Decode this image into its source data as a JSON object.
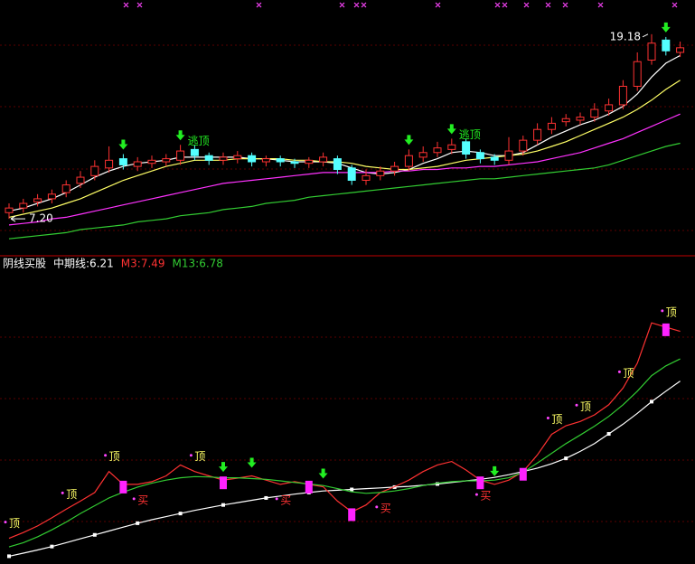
{
  "chart_data": [
    {
      "type": "candlestick",
      "ylim": [
        4.8,
        21.4
      ],
      "open": [
        7.6,
        7.9,
        8.3,
        8.5,
        8.9,
        9.5,
        10.0,
        10.5,
        11.1,
        10.6,
        10.8,
        10.9,
        11.0,
        11.7,
        11.3,
        11.0,
        11.1,
        11.3,
        10.9,
        11.1,
        10.9,
        10.8,
        10.9,
        11.1,
        10.5,
        9.7,
        10.0,
        10.3,
        10.6,
        11.2,
        11.5,
        11.7,
        12.2,
        11.5,
        11.2,
        11.0,
        11.6,
        12.3,
        13.0,
        13.5,
        13.6,
        13.8,
        14.2,
        14.6,
        15.8,
        17.5,
        18.8,
        18.0
      ],
      "high": [
        8.2,
        8.5,
        8.8,
        9.1,
        9.7,
        10.3,
        11.0,
        11.9,
        11.4,
        11.2,
        11.3,
        11.4,
        12.0,
        12.0,
        11.5,
        11.5,
        11.6,
        11.5,
        11.3,
        11.3,
        11.1,
        11.2,
        11.5,
        11.3,
        10.7,
        10.4,
        10.6,
        10.9,
        11.7,
        11.9,
        12.2,
        12.4,
        12.4,
        11.7,
        11.4,
        12.5,
        12.6,
        13.4,
        13.8,
        14.0,
        14.1,
        14.7,
        15.0,
        16.2,
        18.0,
        19.18,
        19.0,
        18.7
      ],
      "low": [
        7.2,
        7.6,
        8.0,
        8.2,
        8.6,
        9.2,
        9.7,
        10.2,
        10.4,
        10.3,
        10.5,
        10.6,
        10.7,
        11.0,
        10.7,
        10.7,
        10.8,
        10.6,
        10.6,
        10.6,
        10.5,
        10.5,
        10.6,
        10.1,
        9.4,
        9.4,
        9.7,
        10.0,
        10.3,
        10.9,
        11.2,
        11.4,
        11.1,
        10.8,
        10.7,
        10.7,
        11.3,
        12.0,
        12.7,
        13.2,
        13.3,
        13.5,
        13.9,
        14.3,
        15.5,
        17.2,
        17.8,
        17.7
      ],
      "close": [
        7.9,
        8.2,
        8.5,
        8.8,
        9.4,
        9.9,
        10.6,
        11.0,
        10.7,
        10.9,
        11.0,
        11.1,
        11.6,
        11.3,
        11.0,
        11.2,
        11.3,
        10.9,
        11.1,
        10.9,
        10.8,
        11.0,
        11.2,
        10.4,
        9.7,
        10.0,
        10.3,
        10.6,
        11.3,
        11.5,
        11.8,
        12.0,
        11.4,
        11.1,
        11.0,
        11.6,
        12.3,
        13.0,
        13.4,
        13.7,
        13.8,
        14.3,
        14.6,
        15.8,
        17.4,
        18.6,
        18.1,
        18.3
      ],
      "up_color": "#ff3232",
      "down_color": "#54ffff",
      "series": [
        {
          "color": "#ffffff",
          "values": [
            7.7,
            7.9,
            8.2,
            8.5,
            8.9,
            9.4,
            9.9,
            10.3,
            10.6,
            10.8,
            10.9,
            11.0,
            11.2,
            11.2,
            11.2,
            11.2,
            11.2,
            11.1,
            11.1,
            11.0,
            10.9,
            10.9,
            10.9,
            10.8,
            10.5,
            10.2,
            10.1,
            10.2,
            10.4,
            10.8,
            11.1,
            11.5,
            11.6,
            11.5,
            11.3,
            11.3,
            11.5,
            12.0,
            12.5,
            12.9,
            13.3,
            13.6,
            14.0,
            14.5,
            15.3,
            16.4,
            17.3,
            17.8
          ]
        },
        {
          "color": "#ffff66",
          "values": [
            7.3,
            7.5,
            7.7,
            7.9,
            8.2,
            8.5,
            8.9,
            9.3,
            9.7,
            10.0,
            10.3,
            10.6,
            10.8,
            11.0,
            11.0,
            11.0,
            11.1,
            11.1,
            11.1,
            11.1,
            11.0,
            11.0,
            10.9,
            10.9,
            10.8,
            10.6,
            10.5,
            10.4,
            10.4,
            10.5,
            10.6,
            10.8,
            11.0,
            11.1,
            11.2,
            11.3,
            11.4,
            11.6,
            11.9,
            12.2,
            12.6,
            13.0,
            13.4,
            13.8,
            14.3,
            14.9,
            15.6,
            16.2
          ]
        },
        {
          "color": "#ff32ff",
          "values": [
            6.8,
            6.9,
            7.0,
            7.2,
            7.3,
            7.5,
            7.7,
            7.9,
            8.1,
            8.3,
            8.5,
            8.7,
            8.9,
            9.1,
            9.3,
            9.5,
            9.6,
            9.7,
            9.8,
            9.9,
            10.0,
            10.1,
            10.2,
            10.2,
            10.2,
            10.2,
            10.2,
            10.3,
            10.3,
            10.4,
            10.4,
            10.5,
            10.5,
            10.6,
            10.6,
            10.7,
            10.8,
            10.9,
            11.1,
            11.3,
            11.5,
            11.8,
            12.1,
            12.4,
            12.8,
            13.2,
            13.6,
            14.0
          ]
        },
        {
          "color": "#32cc32",
          "values": [
            5.9,
            6.0,
            6.1,
            6.2,
            6.3,
            6.5,
            6.6,
            6.7,
            6.8,
            7.0,
            7.1,
            7.2,
            7.4,
            7.5,
            7.6,
            7.8,
            7.9,
            8.0,
            8.2,
            8.3,
            8.4,
            8.6,
            8.7,
            8.8,
            8.9,
            9.0,
            9.1,
            9.2,
            9.3,
            9.4,
            9.5,
            9.6,
            9.7,
            9.8,
            9.8,
            9.9,
            10.0,
            10.1,
            10.2,
            10.3,
            10.4,
            10.5,
            10.7,
            11.0,
            11.3,
            11.6,
            11.9,
            12.1
          ]
        }
      ],
      "high_label": {
        "at": 45,
        "text": "19.18"
      },
      "low_label": {
        "at": 0,
        "text": "7.20"
      },
      "arrows": [
        8,
        12,
        28,
        31,
        46
      ],
      "texts": [
        {
          "at": 12,
          "text": "逃顶"
        },
        {
          "at": 31,
          "text": "逃顶"
        }
      ]
    },
    {
      "type": "line",
      "legend": [
        "阴线买股",
        "中期线:6.21",
        "M3:7.49",
        "M13:6.78"
      ],
      "legend_colors": [
        "#ffffff",
        "#ffffff",
        "#ff3232",
        "#32cc32"
      ],
      "ylim": [
        1.5,
        9.04
      ],
      "series": [
        {
          "color": "#ffffff",
          "markers": true,
          "values": [
            1.7,
            1.78,
            1.86,
            1.95,
            2.05,
            2.15,
            2.25,
            2.35,
            2.45,
            2.55,
            2.64,
            2.72,
            2.8,
            2.88,
            2.95,
            3.02,
            3.08,
            3.14,
            3.2,
            3.25,
            3.3,
            3.34,
            3.38,
            3.4,
            3.42,
            3.44,
            3.46,
            3.48,
            3.5,
            3.53,
            3.56,
            3.6,
            3.64,
            3.68,
            3.73,
            3.8,
            3.88,
            3.97,
            4.08,
            4.22,
            4.4,
            4.6,
            4.85,
            5.1,
            5.38,
            5.68,
            5.95,
            6.21
          ]
        },
        {
          "color": "#ff3232",
          "values": [
            2.16,
            2.31,
            2.48,
            2.69,
            2.91,
            3.12,
            3.34,
            3.88,
            3.55,
            3.55,
            3.62,
            3.77,
            4.05,
            3.88,
            3.77,
            3.66,
            3.71,
            3.77,
            3.66,
            3.55,
            3.62,
            3.55,
            3.49,
            3.12,
            2.84,
            3.02,
            3.34,
            3.49,
            3.66,
            3.88,
            4.05,
            4.14,
            3.92,
            3.66,
            3.55,
            3.66,
            3.88,
            4.31,
            4.84,
            5.06,
            5.17,
            5.34,
            5.6,
            6.03,
            6.67,
            7.71,
            7.6,
            7.49
          ]
        },
        {
          "color": "#32cc32",
          "values": [
            1.94,
            2.05,
            2.2,
            2.38,
            2.58,
            2.8,
            3.0,
            3.2,
            3.35,
            3.48,
            3.58,
            3.66,
            3.72,
            3.75,
            3.74,
            3.72,
            3.72,
            3.7,
            3.68,
            3.64,
            3.6,
            3.56,
            3.52,
            3.44,
            3.36,
            3.32,
            3.34,
            3.38,
            3.44,
            3.52,
            3.58,
            3.62,
            3.64,
            3.64,
            3.66,
            3.72,
            3.86,
            4.1,
            4.35,
            4.6,
            4.82,
            5.05,
            5.3,
            5.6,
            5.95,
            6.35,
            6.6,
            6.78
          ]
        }
      ],
      "top_signals": [
        {
          "at": 0,
          "text": "顶"
        },
        {
          "at": 4,
          "text": "顶"
        },
        {
          "at": 7,
          "text": "顶"
        },
        {
          "at": 13,
          "text": "顶"
        },
        {
          "at": 38,
          "text": "顶"
        },
        {
          "at": 40,
          "text": "顶"
        },
        {
          "at": 43,
          "text": "顶"
        },
        {
          "at": 46,
          "text": "顶"
        }
      ],
      "buy_signals": [
        {
          "at": 9,
          "text": "买"
        },
        {
          "at": 19,
          "text": "买"
        },
        {
          "at": 26,
          "text": "买"
        },
        {
          "at": 33,
          "text": "买"
        }
      ],
      "bars": [
        8,
        15,
        21,
        24,
        33,
        36,
        46
      ],
      "arrows": [
        15,
        17,
        22,
        34
      ]
    }
  ]
}
